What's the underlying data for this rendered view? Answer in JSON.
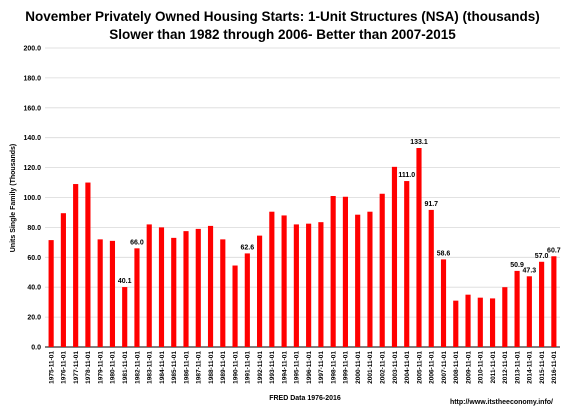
{
  "chart_data": {
    "type": "bar",
    "title": "November Privately Owned Housing Starts: 1-Unit Structures (NSA) (thousands)",
    "subtitle": "Slower than 1982 through 2006- Better than 2007-2015",
    "ylabel": "Units Single Family (Thousands)",
    "xlabel": "FRED  Data 1976-2016",
    "source": "http://www.itstheeconomy.info/",
    "ylim": [
      0,
      200
    ],
    "yticks": [
      "0.0",
      "20.0",
      "40.0",
      "60.0",
      "80.0",
      "100.0",
      "120.0",
      "140.0",
      "160.0",
      "180.0",
      "200.0"
    ],
    "grid": true,
    "bar_color": "#ff0000",
    "categories": [
      "1975-11-01",
      "1976-11-01",
      "1977-11-01",
      "1978-11-01",
      "1979-11-01",
      "1980-11-01",
      "1981-11-01",
      "1982-11-01",
      "1983-11-01",
      "1984-11-01",
      "1985-11-01",
      "1986-11-01",
      "1987-11-01",
      "1988-11-01",
      "1989-11-01",
      "1990-11-01",
      "1991-11-01",
      "1992-11-01",
      "1993-11-01",
      "1994-11-01",
      "1995-11-01",
      "1996-11-01",
      "1997-11-01",
      "1998-11-01",
      "1999-11-01",
      "2000-11-01",
      "2001-11-01",
      "2002-11-01",
      "2003-11-01",
      "2004-11-01",
      "2005-11-01",
      "2006-11-01",
      "2007-11-01",
      "2008-11-01",
      "2009-11-01",
      "2010-11-01",
      "2011-11-01",
      "2012-11-01",
      "2013-11-01",
      "2014-11-01",
      "2015-11-01",
      "2016-11-01"
    ],
    "values": [
      71.5,
      89.5,
      109.0,
      110.0,
      72.0,
      71.0,
      40.1,
      66.0,
      82.0,
      80.0,
      73.0,
      77.5,
      79.0,
      81.0,
      72.0,
      54.5,
      62.6,
      74.5,
      90.5,
      88.0,
      82.0,
      82.5,
      83.5,
      101.0,
      100.5,
      88.5,
      90.5,
      102.5,
      120.5,
      111.0,
      133.1,
      91.7,
      58.6,
      31.0,
      35.0,
      33.0,
      32.5,
      40.0,
      50.9,
      47.3,
      57.0,
      60.7
    ],
    "data_labels": {
      "1981-11-01": "40.1",
      "1982-11-01": "66.0",
      "1991-11-01": "62.6",
      "2004-11-01": "111.0",
      "2005-11-01": "133.1",
      "2006-11-01": "91.7",
      "2007-11-01": "58.6",
      "2013-11-01": "50.9",
      "2014-11-01": "47.3",
      "2015-11-01": "57.0",
      "2016-11-01": "60.7"
    }
  }
}
